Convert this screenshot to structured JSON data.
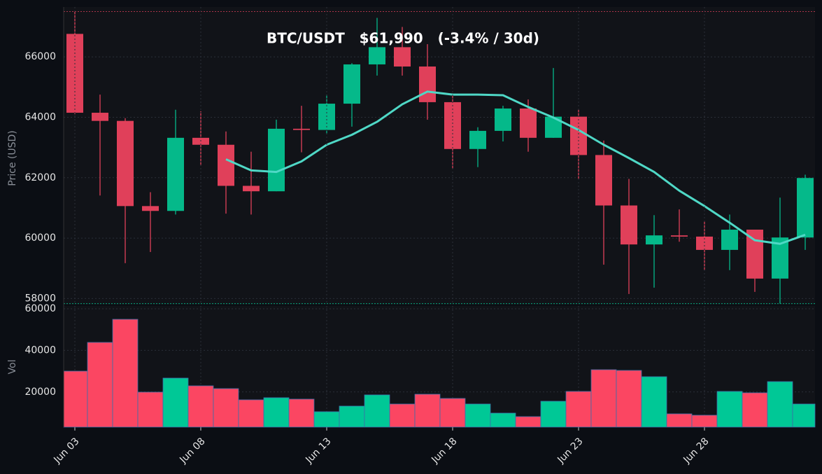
{
  "chart_data": [
    {
      "type": "candlestick",
      "title": "BTC/USDT   $61,990   (-3.4% / 30d)",
      "y_label": "Price (USD)",
      "open": [
        66760,
        64150,
        63880,
        61060,
        60900,
        63320,
        63090,
        61730,
        61550,
        63620,
        63580,
        64450,
        65750,
        66320,
        65680,
        64500,
        62950,
        63550,
        64290,
        63320,
        64020,
        62750,
        61080,
        59790,
        60090,
        60050,
        59610,
        60280,
        58660,
        60020
      ],
      "high": [
        67500,
        64750,
        63970,
        61520,
        64250,
        64200,
        63530,
        62860,
        63920,
        64380,
        64750,
        65790,
        67290,
        66990,
        66420,
        64780,
        63670,
        64380,
        64590,
        65630,
        64250,
        63230,
        61960,
        60760,
        60950,
        60550,
        60780,
        60280,
        61340,
        62100
      ],
      "low": [
        64100,
        61410,
        59170,
        59540,
        60780,
        62400,
        60810,
        60780,
        61550,
        62840,
        63440,
        63690,
        65380,
        65380,
        63920,
        62300,
        62350,
        63200,
        62860,
        63320,
        61960,
        59120,
        58150,
        58360,
        59880,
        58940,
        58940,
        58220,
        57830,
        59610
      ],
      "close": [
        64150,
        63880,
        61060,
        60900,
        63320,
        63090,
        61730,
        61550,
        63620,
        63580,
        64450,
        65750,
        66320,
        65680,
        64500,
        62950,
        63550,
        64290,
        63320,
        64020,
        62750,
        61080,
        59790,
        60090,
        60050,
        59610,
        60280,
        58660,
        60020,
        61990
      ],
      "up_color": "#05b98a",
      "down_color": "#e0405a",
      "ma": {
        "color": "#4fd8c6",
        "values": [
          null,
          null,
          null,
          null,
          null,
          null,
          62610,
          62240,
          62190,
          62540,
          63090,
          63420,
          63850,
          64430,
          64850,
          64750,
          64750,
          64730,
          64340,
          63990,
          63580,
          63090,
          62650,
          62190,
          61570,
          61060,
          60510,
          59930,
          59810,
          60110
        ]
      },
      "ylim": [
        57800,
        67650
      ],
      "yticks": [
        58000,
        60000,
        62000,
        64000,
        66000
      ],
      "grid": true
    },
    {
      "type": "bar",
      "y_label": "Vol",
      "categories": [
        "Jun 03",
        null,
        null,
        null,
        null,
        "Jun 08",
        null,
        null,
        null,
        null,
        "Jun 13",
        null,
        null,
        null,
        null,
        "Jun 18",
        null,
        null,
        null,
        null,
        "Jun 23",
        null,
        null,
        null,
        null,
        "Jun 28",
        null,
        null,
        null,
        null
      ],
      "values": [
        30030,
        43840,
        54950,
        19930,
        26670,
        22960,
        21620,
        16230,
        17240,
        16570,
        10510,
        13200,
        18590,
        14210,
        18920,
        16900,
        14210,
        9830,
        8150,
        15550,
        20270,
        30710,
        30370,
        27340,
        9490,
        8820,
        20270,
        19600,
        24980,
        14210
      ],
      "up_color": "#00c896",
      "down_color": "#fb4662",
      "ylim": [
        3100,
        61350
      ],
      "yticks": [
        20000,
        40000,
        60000
      ],
      "grid": true
    }
  ]
}
